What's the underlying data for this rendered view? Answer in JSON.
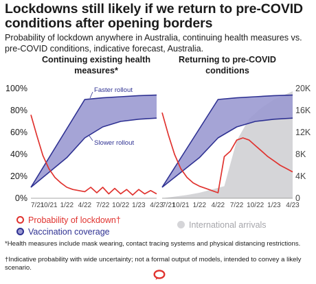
{
  "title": "Lockdowns still likely if we return to pre-COVID conditions after opening borders",
  "subtitle": "Probability of lockdown anywhere in Australia, continuing health measures vs. pre-COVID conditions, indicative forecast, Australia.",
  "colors": {
    "lockdown": "#e0322e",
    "vaccination_fill": "#9b9ad2",
    "vaccination_line": "#2e3192",
    "arrivals": "#d5d5d8",
    "text": "#1a1a1a",
    "axis_text": "#444444"
  },
  "chart_data": [
    {
      "type": "line",
      "panel_title": "Continuing existing health measures*",
      "x_ticks": [
        "7/21",
        "10/21",
        "1/22",
        "4/22",
        "7/22",
        "10/22",
        "1/23",
        "4/23"
      ],
      "x_domain": [
        "7/21",
        "4/23"
      ],
      "y_left_ticks": [
        "0%",
        "20%",
        "40%",
        "60%",
        "80%",
        "100%"
      ],
      "y_left_range": [
        0,
        100
      ],
      "grid": false,
      "annotations": [
        "Faster rollout",
        "Slower rollout"
      ],
      "series": [
        {
          "name": "Probability of lockdown†",
          "axis": "left",
          "x": [
            "7/21",
            "8/21",
            "9/21",
            "10/21",
            "11/21",
            "12/21",
            "1/22",
            "2/22",
            "3/22",
            "4/22",
            "5/22",
            "6/22",
            "7/22",
            "8/22",
            "9/22",
            "10/22",
            "11/22",
            "12/22",
            "1/23",
            "2/23",
            "3/23",
            "4/23"
          ],
          "values": [
            76,
            57,
            39,
            27,
            19,
            14,
            10,
            8,
            7,
            6,
            10,
            5,
            10,
            4,
            9,
            4,
            8,
            3,
            8,
            4,
            7,
            4
          ]
        },
        {
          "name": "Vaccination coverage (faster rollout)",
          "axis": "left",
          "x": [
            "7/21",
            "4/22",
            "7/22",
            "10/22",
            "1/23",
            "4/23"
          ],
          "values": [
            10,
            90,
            91.5,
            92.5,
            93.5,
            94
          ]
        },
        {
          "name": "Vaccination coverage (slower rollout)",
          "axis": "left",
          "x": [
            "7/21",
            "1/22",
            "4/22",
            "7/22",
            "10/22",
            "1/23",
            "4/23"
          ],
          "values": [
            10,
            37,
            55,
            65,
            70,
            72,
            73
          ]
        }
      ]
    },
    {
      "type": "line",
      "panel_title": "Returning to pre-COVID conditions",
      "x_ticks": [
        "7/21",
        "10/21",
        "1/22",
        "4/22",
        "7/22",
        "10/22",
        "1/23",
        "4/23"
      ],
      "x_domain": [
        "7/21",
        "4/23"
      ],
      "y_right_ticks": [
        "0",
        "4K",
        "8K",
        "12K",
        "16K",
        "20K"
      ],
      "y_right_range": [
        0,
        20000
      ],
      "grid": false,
      "series": [
        {
          "name": "Probability of lockdown†",
          "axis": "left",
          "x": [
            "7/21",
            "8/21",
            "9/21",
            "10/21",
            "11/21",
            "12/21",
            "1/22",
            "2/22",
            "3/22",
            "4/22",
            "5/22",
            "6/22",
            "7/22",
            "8/22",
            "9/22",
            "10/22",
            "11/22",
            "12/22",
            "1/23",
            "2/23",
            "3/23",
            "4/23"
          ],
          "values": [
            78,
            58,
            40,
            27,
            19,
            14,
            11,
            9,
            7,
            5,
            38,
            43,
            53,
            55,
            53,
            48,
            43,
            38,
            34,
            30,
            27,
            24
          ]
        },
        {
          "name": "Vaccination coverage (faster rollout)",
          "axis": "left",
          "x": [
            "7/21",
            "4/22",
            "7/22",
            "10/22",
            "1/23",
            "4/23"
          ],
          "values": [
            10,
            90,
            91.5,
            92.5,
            93.5,
            94
          ]
        },
        {
          "name": "Vaccination coverage (slower rollout)",
          "axis": "left",
          "x": [
            "7/21",
            "1/22",
            "4/22",
            "7/22",
            "10/22",
            "1/23",
            "4/23"
          ],
          "values": [
            10,
            37,
            55,
            65,
            70,
            72,
            73
          ]
        },
        {
          "name": "International arrivals",
          "axis": "right",
          "x": [
            "7/21",
            "9/21",
            "11/21",
            "1/22",
            "3/22",
            "5/22",
            "7/22",
            "9/22",
            "11/22",
            "1/23",
            "3/23",
            "4/23"
          ],
          "values": [
            0,
            300,
            600,
            1000,
            1600,
            2200,
            10500,
            14500,
            16500,
            18000,
            19000,
            19500
          ]
        }
      ]
    }
  ],
  "legend": {
    "lockdown": "Probability of lockdown†",
    "vaccination": "Vaccination coverage",
    "arrivals": "International arrivals"
  },
  "footnotes": {
    "health": "*Health measures include mask wearing, contact tracing systems and physical distancing restrictions.",
    "indicative": "†Indicative probability with wide uncertainty; not a formal output of models, intended to convey a likely scenario."
  },
  "logo_icon": "speech-bubble-logo-icon"
}
